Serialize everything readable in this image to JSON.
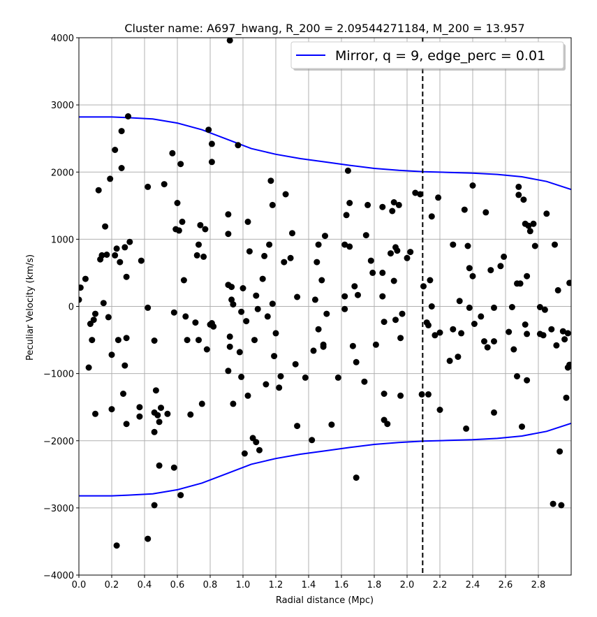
{
  "chart_data": {
    "type": "scatter",
    "title": "Cluster name: A697_hwang, R_200 = 2.09544271184, M_200 = 13.957",
    "xlabel": "Radial distance (Mpc)",
    "ylabel": "Peculiar Velocity (km/s)",
    "xlim": [
      0.0,
      3.0
    ],
    "ylim": [
      -4000,
      4000
    ],
    "xticks": [
      0.0,
      0.2,
      0.4,
      0.6,
      0.8,
      1.0,
      1.2,
      1.4,
      1.6,
      1.8,
      2.0,
      2.2,
      2.4,
      2.6,
      2.8
    ],
    "xtick_labels": [
      "0.0",
      "0.2",
      "0.4",
      "0.6",
      "0.8",
      "1.0",
      "1.2",
      "1.4",
      "1.6",
      "1.8",
      "2.0",
      "2.2",
      "2.4",
      "2.6",
      "2.8"
    ],
    "yticks": [
      -4000,
      -3000,
      -2000,
      -1000,
      0,
      1000,
      2000,
      3000,
      4000
    ],
    "ytick_labels": [
      "−4000",
      "−3000",
      "−2000",
      "−1000",
      "0",
      "1000",
      "2000",
      "3000",
      "4000"
    ],
    "grid": true,
    "legend": {
      "placement": "top-right",
      "entries": [
        "Mirror, q = 9, edge_perc = 0.01"
      ]
    },
    "colors": {
      "caustic": "#0000ff",
      "points": "#000000",
      "r200_line": "#000000"
    },
    "r200_line": {
      "x": 2.095,
      "style": "dashed"
    },
    "series": [
      {
        "name": "Mirror, q = 9, edge_perc = 0.01",
        "type": "line",
        "x": [
          0.0,
          0.05,
          0.1,
          0.15,
          0.2,
          0.3,
          0.45,
          0.6,
          0.75,
          0.9,
          1.05,
          1.2,
          1.35,
          1.5,
          1.65,
          1.8,
          1.95,
          2.1,
          2.25,
          2.4,
          2.55,
          2.7,
          2.85,
          3.0
        ],
        "y": [
          2820,
          2820,
          2820,
          2820,
          2820,
          2810,
          2790,
          2730,
          2630,
          2490,
          2350,
          2265,
          2200,
          2150,
          2100,
          2055,
          2025,
          2005,
          1995,
          1985,
          1965,
          1930,
          1860,
          1740
        ]
      },
      {
        "type": "line",
        "x": [
          0.0,
          0.05,
          0.1,
          0.15,
          0.2,
          0.3,
          0.45,
          0.6,
          0.75,
          0.9,
          1.05,
          1.2,
          1.35,
          1.5,
          1.65,
          1.8,
          1.95,
          2.1,
          2.25,
          2.4,
          2.55,
          2.7,
          2.85,
          3.0
        ],
        "y": [
          -2820,
          -2820,
          -2820,
          -2820,
          -2820,
          -2810,
          -2790,
          -2730,
          -2630,
          -2490,
          -2350,
          -2265,
          -2200,
          -2150,
          -2100,
          -2055,
          -2025,
          -2005,
          -1995,
          -1985,
          -1965,
          -1930,
          -1860,
          -1740
        ]
      },
      {
        "type": "scatter",
        "points": [
          [
            0.0,
            100
          ],
          [
            0.01,
            280
          ],
          [
            0.04,
            410
          ],
          [
            0.06,
            -910
          ],
          [
            0.07,
            -260
          ],
          [
            0.08,
            -500
          ],
          [
            0.09,
            -200
          ],
          [
            0.1,
            -110
          ],
          [
            0.1,
            -1600
          ],
          [
            0.12,
            1730
          ],
          [
            0.13,
            700
          ],
          [
            0.14,
            760
          ],
          [
            0.15,
            50
          ],
          [
            0.16,
            1190
          ],
          [
            0.17,
            770
          ],
          [
            0.18,
            -160
          ],
          [
            0.19,
            1900
          ],
          [
            0.2,
            -720
          ],
          [
            0.2,
            -1530
          ],
          [
            0.22,
            2330
          ],
          [
            0.22,
            760
          ],
          [
            0.23,
            860
          ],
          [
            0.23,
            -3560
          ],
          [
            0.24,
            -500
          ],
          [
            0.25,
            660
          ],
          [
            0.26,
            2610
          ],
          [
            0.26,
            2060
          ],
          [
            0.27,
            -1300
          ],
          [
            0.28,
            -880
          ],
          [
            0.28,
            880
          ],
          [
            0.29,
            440
          ],
          [
            0.29,
            -470
          ],
          [
            0.29,
            -1750
          ],
          [
            0.3,
            2830
          ],
          [
            0.31,
            960
          ],
          [
            0.37,
            -1500
          ],
          [
            0.37,
            -1640
          ],
          [
            0.38,
            680
          ],
          [
            0.42,
            1780
          ],
          [
            0.42,
            -20
          ],
          [
            0.42,
            -3460
          ],
          [
            0.46,
            -510
          ],
          [
            0.46,
            -1580
          ],
          [
            0.46,
            -1870
          ],
          [
            0.46,
            -2960
          ],
          [
            0.47,
            -1250
          ],
          [
            0.48,
            -1620
          ],
          [
            0.49,
            -1720
          ],
          [
            0.49,
            -2370
          ],
          [
            0.5,
            -1510
          ],
          [
            0.52,
            1820
          ],
          [
            0.54,
            -1600
          ],
          [
            0.57,
            2280
          ],
          [
            0.58,
            -90
          ],
          [
            0.58,
            -2400
          ],
          [
            0.59,
            1150
          ],
          [
            0.6,
            1540
          ],
          [
            0.61,
            1130
          ],
          [
            0.62,
            2120
          ],
          [
            0.62,
            -2810
          ],
          [
            0.63,
            1260
          ],
          [
            0.64,
            390
          ],
          [
            0.65,
            -150
          ],
          [
            0.66,
            -500
          ],
          [
            0.68,
            -1610
          ],
          [
            0.71,
            -240
          ],
          [
            0.72,
            760
          ],
          [
            0.73,
            920
          ],
          [
            0.73,
            -500
          ],
          [
            0.74,
            1210
          ],
          [
            0.75,
            -1450
          ],
          [
            0.76,
            740
          ],
          [
            0.77,
            1150
          ],
          [
            0.78,
            -640
          ],
          [
            0.79,
            2630
          ],
          [
            0.8,
            -270
          ],
          [
            0.81,
            -250
          ],
          [
            0.81,
            2420
          ],
          [
            0.81,
            2150
          ],
          [
            0.82,
            -300
          ],
          [
            0.91,
            -960
          ],
          [
            0.91,
            1370
          ],
          [
            0.91,
            1080
          ],
          [
            0.91,
            320
          ],
          [
            0.92,
            -450
          ],
          [
            0.92,
            -600
          ],
          [
            0.92,
            3960
          ],
          [
            0.93,
            100
          ],
          [
            0.93,
            290
          ],
          [
            0.94,
            30
          ],
          [
            0.94,
            -1450
          ],
          [
            0.97,
            2400
          ],
          [
            0.98,
            -680
          ],
          [
            0.99,
            -80
          ],
          [
            0.99,
            -1050
          ],
          [
            1.0,
            270
          ],
          [
            1.01,
            -2190
          ],
          [
            1.02,
            -220
          ],
          [
            1.03,
            1260
          ],
          [
            1.03,
            -1330
          ],
          [
            1.04,
            820
          ],
          [
            1.06,
            -1960
          ],
          [
            1.07,
            -500
          ],
          [
            1.08,
            -2020
          ],
          [
            1.08,
            160
          ],
          [
            1.09,
            -40
          ],
          [
            1.1,
            -2140
          ],
          [
            1.12,
            410
          ],
          [
            1.13,
            750
          ],
          [
            1.14,
            -1160
          ],
          [
            1.15,
            -150
          ],
          [
            1.16,
            920
          ],
          [
            1.17,
            1870
          ],
          [
            1.18,
            1510
          ],
          [
            1.18,
            40
          ],
          [
            1.19,
            -740
          ],
          [
            1.2,
            -400
          ],
          [
            1.22,
            -1210
          ],
          [
            1.23,
            -1040
          ],
          [
            1.25,
            660
          ],
          [
            1.26,
            1670
          ],
          [
            1.29,
            720
          ],
          [
            1.3,
            1090
          ],
          [
            1.32,
            -860
          ],
          [
            1.33,
            -1780
          ],
          [
            1.33,
            140
          ],
          [
            1.38,
            -1060
          ],
          [
            1.42,
            -1990
          ],
          [
            1.43,
            -660
          ],
          [
            1.44,
            100
          ],
          [
            1.45,
            660
          ],
          [
            1.46,
            920
          ],
          [
            1.46,
            -340
          ],
          [
            1.48,
            390
          ],
          [
            1.49,
            -600
          ],
          [
            1.49,
            -570
          ],
          [
            1.5,
            1050
          ],
          [
            1.51,
            -110
          ],
          [
            1.54,
            -1760
          ],
          [
            1.58,
            -1060
          ],
          [
            1.62,
            -40
          ],
          [
            1.62,
            150
          ],
          [
            1.62,
            920
          ],
          [
            1.63,
            1360
          ],
          [
            1.64,
            2020
          ],
          [
            1.65,
            1540
          ],
          [
            1.65,
            890
          ],
          [
            1.67,
            -590
          ],
          [
            1.68,
            300
          ],
          [
            1.69,
            -830
          ],
          [
            1.69,
            -2550
          ],
          [
            1.7,
            170
          ],
          [
            1.74,
            -1120
          ],
          [
            1.75,
            1060
          ],
          [
            1.76,
            1510
          ],
          [
            1.78,
            680
          ],
          [
            1.79,
            500
          ],
          [
            1.81,
            -570
          ],
          [
            1.85,
            1480
          ],
          [
            1.85,
            500
          ],
          [
            1.85,
            150
          ],
          [
            1.86,
            -230
          ],
          [
            1.86,
            -1300
          ],
          [
            1.86,
            -1690
          ],
          [
            1.88,
            -1750
          ],
          [
            1.9,
            790
          ],
          [
            1.91,
            1420
          ],
          [
            1.92,
            380
          ],
          [
            1.92,
            1550
          ],
          [
            1.93,
            -200
          ],
          [
            1.93,
            880
          ],
          [
            1.94,
            830
          ],
          [
            1.95,
            1510
          ],
          [
            1.96,
            -470
          ],
          [
            1.96,
            -1330
          ],
          [
            1.97,
            -110
          ],
          [
            2.0,
            720
          ],
          [
            2.02,
            810
          ],
          [
            2.05,
            1690
          ],
          [
            2.08,
            1670
          ],
          [
            2.09,
            -1310
          ],
          [
            2.1,
            300
          ],
          [
            2.12,
            -240
          ],
          [
            2.13,
            -280
          ],
          [
            2.13,
            -1310
          ],
          [
            2.14,
            390
          ],
          [
            2.15,
            1340
          ],
          [
            2.15,
            0
          ],
          [
            2.17,
            -430
          ],
          [
            2.19,
            1620
          ],
          [
            2.2,
            -390
          ],
          [
            2.2,
            -1540
          ],
          [
            2.26,
            -810
          ],
          [
            2.28,
            920
          ],
          [
            2.28,
            -340
          ],
          [
            2.31,
            -750
          ],
          [
            2.32,
            80
          ],
          [
            2.33,
            -400
          ],
          [
            2.35,
            1440
          ],
          [
            2.36,
            -1820
          ],
          [
            2.37,
            900
          ],
          [
            2.38,
            570
          ],
          [
            2.38,
            -20
          ],
          [
            2.4,
            1800
          ],
          [
            2.4,
            450
          ],
          [
            2.41,
            -260
          ],
          [
            2.45,
            -150
          ],
          [
            2.47,
            -520
          ],
          [
            2.48,
            1400
          ],
          [
            2.49,
            -610
          ],
          [
            2.51,
            540
          ],
          [
            2.53,
            -520
          ],
          [
            2.53,
            -20
          ],
          [
            2.53,
            -1580
          ],
          [
            2.57,
            600
          ],
          [
            2.59,
            740
          ],
          [
            2.62,
            -380
          ],
          [
            2.64,
            -10
          ],
          [
            2.65,
            -640
          ],
          [
            2.67,
            340
          ],
          [
            2.67,
            -1040
          ],
          [
            2.68,
            1660
          ],
          [
            2.68,
            1780
          ],
          [
            2.69,
            340
          ],
          [
            2.7,
            -1790
          ],
          [
            2.71,
            1590
          ],
          [
            2.72,
            1230
          ],
          [
            2.72,
            -270
          ],
          [
            2.73,
            -410
          ],
          [
            2.73,
            450
          ],
          [
            2.73,
            -1100
          ],
          [
            2.74,
            1200
          ],
          [
            2.75,
            1120
          ],
          [
            2.77,
            1230
          ],
          [
            2.78,
            900
          ],
          [
            2.81,
            -10
          ],
          [
            2.81,
            -410
          ],
          [
            2.83,
            -430
          ],
          [
            2.84,
            -50
          ],
          [
            2.85,
            1380
          ],
          [
            2.88,
            -340
          ],
          [
            2.89,
            -2940
          ],
          [
            2.9,
            920
          ],
          [
            2.91,
            -580
          ],
          [
            2.92,
            240
          ],
          [
            2.93,
            -2160
          ],
          [
            2.94,
            -2960
          ],
          [
            2.95,
            -370
          ],
          [
            2.96,
            -490
          ],
          [
            2.97,
            -1360
          ],
          [
            2.98,
            -400
          ],
          [
            2.98,
            -910
          ],
          [
            2.99,
            350
          ],
          [
            2.99,
            -870
          ]
        ]
      }
    ]
  }
}
